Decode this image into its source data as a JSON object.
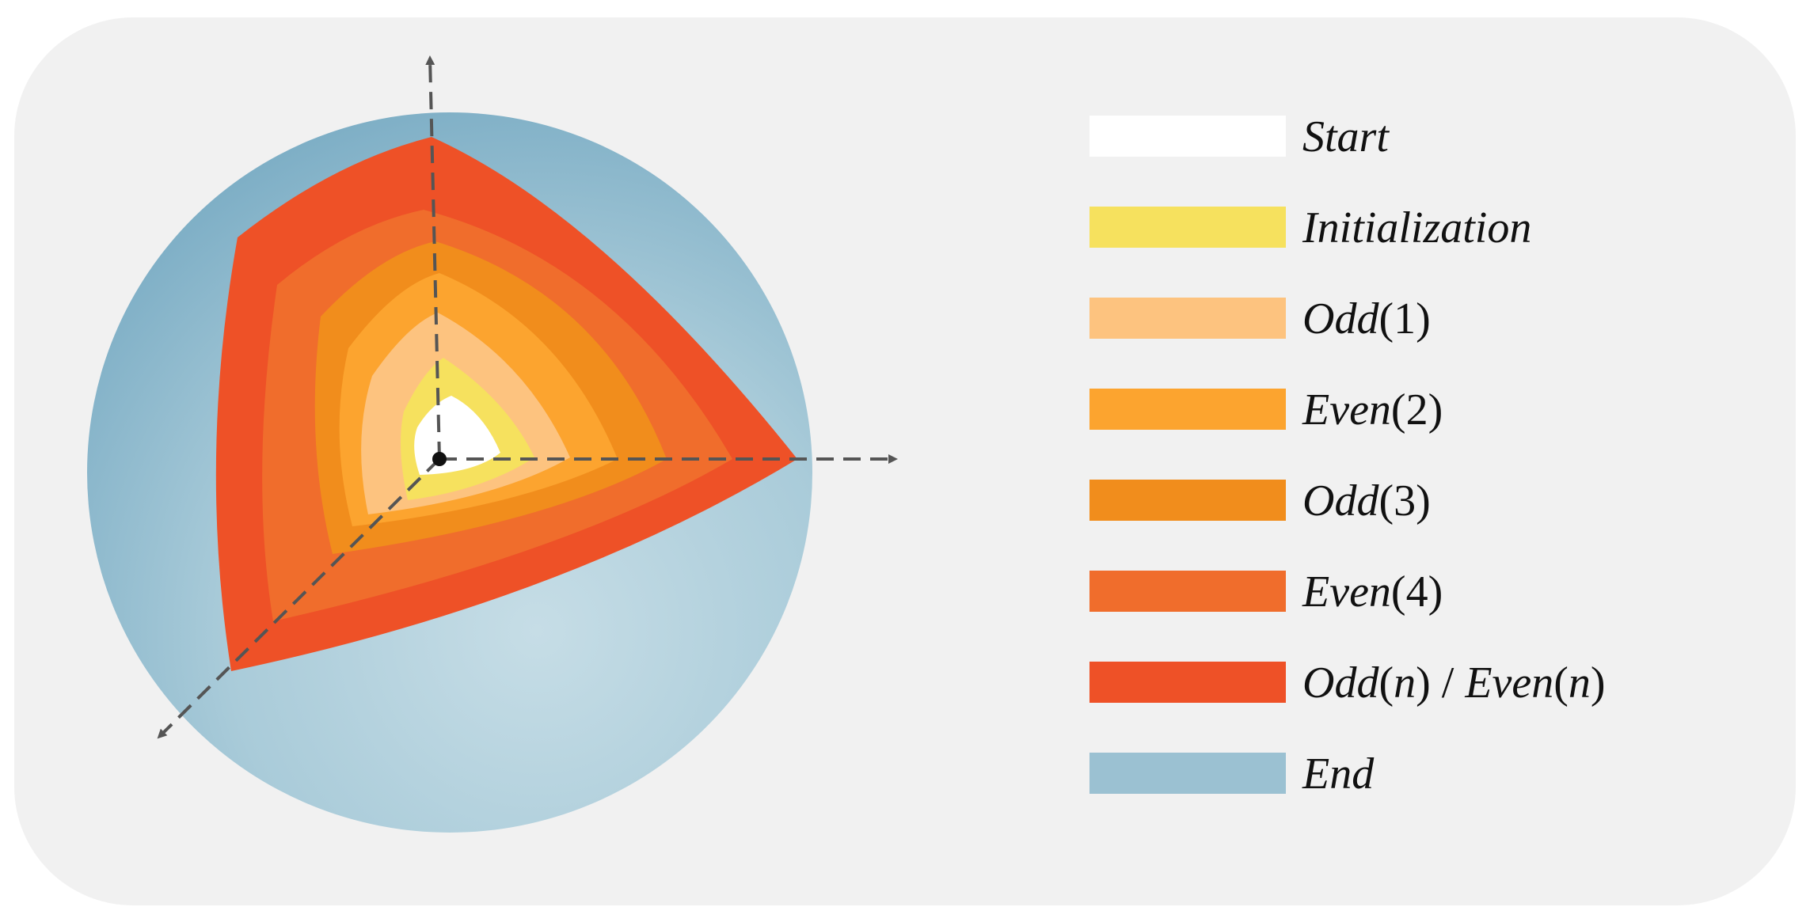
{
  "legend": [
    {
      "id": "start",
      "color": "#ffffff",
      "parts": [
        {
          "text": "Start",
          "italic": true
        }
      ]
    },
    {
      "id": "init",
      "color": "#f6e15e",
      "parts": [
        {
          "text": "Initialization",
          "italic": true
        }
      ]
    },
    {
      "id": "odd1",
      "color": "#fdc37f",
      "parts": [
        {
          "text": "Odd",
          "italic": true
        },
        {
          "text": "(1)",
          "italic": false
        }
      ]
    },
    {
      "id": "even2",
      "color": "#fca42f",
      "parts": [
        {
          "text": "Even",
          "italic": true
        },
        {
          "text": "(2)",
          "italic": false
        }
      ]
    },
    {
      "id": "odd3",
      "color": "#f18d1c",
      "parts": [
        {
          "text": "Odd",
          "italic": true
        },
        {
          "text": "(3)",
          "italic": false
        }
      ]
    },
    {
      "id": "even4",
      "color": "#f06d2c",
      "parts": [
        {
          "text": "Even",
          "italic": true
        },
        {
          "text": "(4)",
          "italic": false
        }
      ]
    },
    {
      "id": "oddn",
      "color": "#ee5127",
      "parts": [
        {
          "text": "Odd",
          "italic": true
        },
        {
          "text": "(",
          "italic": false
        },
        {
          "text": "n",
          "italic": true
        },
        {
          "text": ") / ",
          "italic": false
        },
        {
          "text": "Even",
          "italic": true
        },
        {
          "text": "(",
          "italic": false
        },
        {
          "text": "n",
          "italic": true
        },
        {
          "text": ")",
          "italic": false
        }
      ]
    },
    {
      "id": "end",
      "color": "#9bc1d2",
      "parts": [
        {
          "text": "End",
          "italic": true
        }
      ]
    }
  ],
  "colors": {
    "panel": "#f1f1f1",
    "axis": "#555555",
    "sphere_light": "#c3dce5",
    "sphere_dark": "#7eafc6"
  }
}
